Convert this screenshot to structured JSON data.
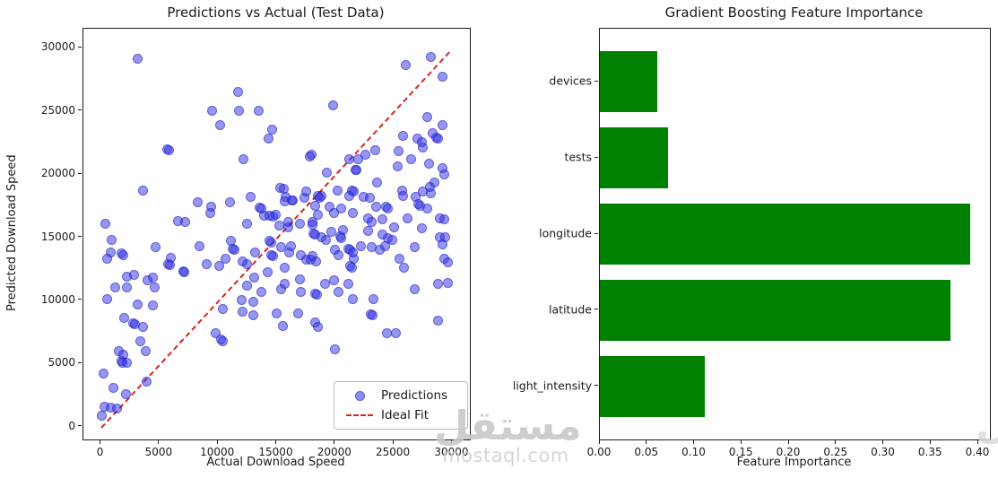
{
  "left_chart": {
    "title": "Predictions vs Actual (Test Data)",
    "xlabel": "Actual Download Speed",
    "ylabel": "Predicted Download Speed",
    "legend": {
      "predictions_label": "Predictions",
      "ideal_fit_label": "Ideal Fit"
    }
  },
  "right_chart": {
    "title": "Gradient Boosting Feature Importance",
    "xlabel": "Feature Importance"
  },
  "watermark": {
    "logo_text": "مستقل",
    "site_text": "mostaql.com",
    "color": "#c8c8c8"
  },
  "colors": {
    "scatter_point": "#3030e4",
    "ideal_fit_line": "#dd2222",
    "bar_green": "#008000",
    "text": "#1a1a1a"
  },
  "chart_data": [
    {
      "type": "scatter",
      "title": "Predictions vs Actual (Test Data)",
      "xlabel": "Actual Download Speed",
      "ylabel": "Predicted Download Speed",
      "xlim": [
        -1500,
        31500
      ],
      "ylim": [
        -1000,
        31500
      ],
      "xticks": [
        0,
        5000,
        10000,
        15000,
        20000,
        25000,
        30000
      ],
      "yticks": [
        0,
        5000,
        10000,
        15000,
        20000,
        25000,
        30000
      ],
      "grid": false,
      "legend_position": "lower right",
      "series": [
        {
          "name": "Predictions",
          "marker": "circle",
          "color": "#3030e4",
          "alpha": 0.5,
          "points": [
            [
              3100,
              29100
            ],
            [
              9500,
              25000
            ],
            [
              5650,
              21950
            ],
            [
              5800,
              21850
            ],
            [
              3600,
              18700
            ],
            [
              8300,
              17800
            ],
            [
              9300,
              16900
            ],
            [
              6600,
              16300
            ],
            [
              7200,
              16200
            ],
            [
              11700,
              26500
            ],
            [
              11800,
              25000
            ],
            [
              13500,
              25000
            ],
            [
              10200,
              23900
            ],
            [
              14600,
              23500
            ],
            [
              14300,
              22800
            ],
            [
              19800,
              25400
            ],
            [
              12200,
              21200
            ],
            [
              18000,
              21500
            ],
            [
              19300,
              20100
            ],
            [
              20200,
              18700
            ],
            [
              15600,
              18800
            ],
            [
              15800,
              18200
            ],
            [
              12800,
              18200
            ],
            [
              11000,
              17800
            ],
            [
              9400,
              17400
            ],
            [
              16400,
              17900
            ],
            [
              17400,
              18100
            ],
            [
              18800,
              18300
            ],
            [
              19900,
              16900
            ],
            [
              13550,
              17350
            ],
            [
              13700,
              17250
            ],
            [
              13900,
              16700
            ],
            [
              14700,
              16600
            ],
            [
              12500,
              16100
            ],
            [
              15200,
              15900
            ],
            [
              16000,
              15800
            ],
            [
              18100,
              16200
            ],
            [
              18500,
              16800
            ],
            [
              26000,
              28600
            ],
            [
              28200,
              29300
            ],
            [
              29200,
              27700
            ],
            [
              27900,
              24500
            ],
            [
              29200,
              23900
            ],
            [
              25800,
              23000
            ],
            [
              27000,
              22800
            ],
            [
              27400,
              22500
            ],
            [
              27500,
              22100
            ],
            [
              28600,
              22900
            ],
            [
              28750,
              22800
            ],
            [
              28300,
              23200
            ],
            [
              23400,
              21900
            ],
            [
              22600,
              21500
            ],
            [
              22000,
              21200
            ],
            [
              21200,
              21200
            ],
            [
              25400,
              21800
            ],
            [
              26500,
              21200
            ],
            [
              25300,
              20600
            ],
            [
              28000,
              20800
            ],
            [
              29200,
              20500
            ],
            [
              21700,
              20300
            ],
            [
              23600,
              19300
            ],
            [
              21400,
              18700
            ],
            [
              21550,
              18600
            ],
            [
              25700,
              18700
            ],
            [
              28100,
              19000
            ],
            [
              28500,
              19300
            ],
            [
              26900,
              18200
            ],
            [
              29300,
              20000
            ],
            [
              900,
              14800
            ],
            [
              800,
              13800
            ],
            [
              1750,
              13700
            ],
            [
              1900,
              13600
            ],
            [
              500,
              13300
            ],
            [
              2200,
              11900
            ],
            [
              2800,
              12000
            ],
            [
              1200,
              11000
            ],
            [
              2200,
              11000
            ],
            [
              4400,
              11800
            ],
            [
              4000,
              11600
            ],
            [
              4600,
              11000
            ],
            [
              500,
              10100
            ],
            [
              3100,
              9700
            ],
            [
              4400,
              9600
            ],
            [
              2000,
              8600
            ],
            [
              2750,
              8200
            ],
            [
              2900,
              8100
            ],
            [
              3600,
              7900
            ],
            [
              3400,
              6800
            ],
            [
              3800,
              6000
            ],
            [
              1500,
              6000
            ],
            [
              1900,
              5700
            ],
            [
              1750,
              5200
            ],
            [
              1850,
              5100
            ],
            [
              2200,
              5050
            ],
            [
              200,
              4200
            ],
            [
              1100,
              3050
            ],
            [
              2100,
              2600
            ],
            [
              300,
              1600
            ],
            [
              800,
              1500
            ],
            [
              1400,
              1450
            ],
            [
              100,
              900
            ],
            [
              3900,
              3600
            ],
            [
              4700,
              14200
            ],
            [
              6000,
              13400
            ],
            [
              5750,
              12900
            ],
            [
              5900,
              12800
            ],
            [
              7000,
              12300
            ],
            [
              7150,
              12200
            ],
            [
              8400,
              14300
            ],
            [
              9000,
              12900
            ],
            [
              400,
              16100
            ],
            [
              11100,
              14700
            ],
            [
              11250,
              14100
            ],
            [
              11400,
              14000
            ],
            [
              10100,
              12700
            ],
            [
              10600,
              13300
            ],
            [
              12100,
              13100
            ],
            [
              12500,
              12900
            ],
            [
              13200,
              13800
            ],
            [
              14400,
              14700
            ],
            [
              14550,
              14600
            ],
            [
              14550,
              13600
            ],
            [
              14700,
              13500
            ],
            [
              15400,
              14200
            ],
            [
              16200,
              14300
            ],
            [
              17500,
              13200
            ],
            [
              18100,
              13500
            ],
            [
              18400,
              13100
            ],
            [
              20000,
              14000
            ],
            [
              20300,
              13600
            ],
            [
              13100,
              11800
            ],
            [
              14200,
              12200
            ],
            [
              15700,
              12600
            ],
            [
              15700,
              11300
            ],
            [
              17000,
              11700
            ],
            [
              19100,
              11300
            ],
            [
              19900,
              11600
            ],
            [
              20300,
              10700
            ],
            [
              18300,
              10550
            ],
            [
              18450,
              10450
            ],
            [
              17100,
              10700
            ],
            [
              15400,
              10900
            ],
            [
              13700,
              10700
            ],
            [
              12500,
              11200
            ],
            [
              12000,
              10000
            ],
            [
              13000,
              9900
            ],
            [
              12100,
              9100
            ],
            [
              13000,
              8800
            ],
            [
              10400,
              9300
            ],
            [
              15000,
              9000
            ],
            [
              15500,
              8000
            ],
            [
              16800,
              9000
            ],
            [
              18300,
              8250
            ],
            [
              18500,
              7900
            ],
            [
              10250,
              6900
            ],
            [
              10400,
              6800
            ],
            [
              9800,
              7400
            ],
            [
              20000,
              6100
            ],
            [
              23100,
              14200
            ],
            [
              23800,
              14000
            ],
            [
              24300,
              14300
            ],
            [
              24500,
              14900
            ],
            [
              24900,
              14800
            ],
            [
              21150,
              14100
            ],
            [
              21300,
              14000
            ],
            [
              21600,
              13300
            ],
            [
              21300,
              12700
            ],
            [
              21450,
              12600
            ],
            [
              25500,
              13300
            ],
            [
              25900,
              12600
            ],
            [
              26800,
              14200
            ],
            [
              28900,
              15000
            ],
            [
              29200,
              14400
            ],
            [
              29300,
              13300
            ],
            [
              29600,
              13000
            ],
            [
              28800,
              11300
            ],
            [
              29600,
              11400
            ],
            [
              21100,
              11300
            ],
            [
              21500,
              10100
            ],
            [
              23300,
              10100
            ],
            [
              26800,
              10900
            ],
            [
              23050,
              8900
            ],
            [
              23200,
              8800
            ],
            [
              24400,
              7400
            ],
            [
              25200,
              7400
            ],
            [
              28800,
              8400
            ],
            [
              17800,
              21400
            ],
            [
              21800,
              20300
            ],
            [
              15300,
              18900
            ],
            [
              15700,
              17850
            ],
            [
              16300,
              17900
            ],
            [
              17500,
              18600
            ],
            [
              18500,
              18250
            ],
            [
              18650,
              18150
            ],
            [
              21200,
              18300
            ],
            [
              22400,
              18200
            ],
            [
              23000,
              18100
            ],
            [
              18300,
              17500
            ],
            [
              19500,
              17400
            ],
            [
              20500,
              17300
            ],
            [
              21500,
              16900
            ],
            [
              22800,
              16500
            ],
            [
              23100,
              16200
            ],
            [
              16000,
              16200
            ],
            [
              17000,
              16100
            ],
            [
              18100,
              16000
            ],
            [
              18150,
              15300
            ],
            [
              18300,
              15200
            ],
            [
              18800,
              15000
            ],
            [
              19200,
              14800
            ],
            [
              19700,
              15400
            ],
            [
              20700,
              15600
            ],
            [
              20400,
              15050
            ],
            [
              20550,
              14950
            ],
            [
              16100,
              13800
            ],
            [
              17100,
              13600
            ],
            [
              17900,
              13250
            ],
            [
              14900,
              16800
            ],
            [
              14400,
              16700
            ],
            [
              22200,
              14300
            ],
            [
              21500,
              13800
            ],
            [
              22800,
              15500
            ],
            [
              25800,
              18300
            ],
            [
              27500,
              18600
            ],
            [
              28200,
              18500
            ],
            [
              24350,
              17400
            ],
            [
              24500,
              17300
            ],
            [
              27100,
              17600
            ],
            [
              27250,
              17500
            ],
            [
              27900,
              17300
            ],
            [
              28900,
              16500
            ],
            [
              29300,
              16400
            ],
            [
              26200,
              16500
            ],
            [
              25000,
              15800
            ],
            [
              24000,
              16400
            ],
            [
              23500,
              17400
            ],
            [
              27400,
              15700
            ],
            [
              29400,
              15000
            ],
            [
              24000,
              15250
            ]
          ]
        },
        {
          "name": "Ideal Fit",
          "style": "dashed-line",
          "color": "#dd2222",
          "from": [
            0,
            0
          ],
          "to": [
            29700,
            29700
          ]
        }
      ]
    },
    {
      "type": "bar",
      "orientation": "horizontal",
      "title": "Gradient Boosting Feature Importance",
      "xlabel": "Feature Importance",
      "categories": [
        "devices",
        "tests",
        "longitude",
        "latitude",
        "light_intensity"
      ],
      "values": [
        0.061,
        0.072,
        0.391,
        0.371,
        0.111
      ],
      "bar_color": "#008000",
      "xlim": [
        0,
        0.4123
      ],
      "xticks": [
        0.0,
        0.05,
        0.1,
        0.15,
        0.2,
        0.25,
        0.3,
        0.35,
        0.4
      ],
      "grid": false
    }
  ]
}
